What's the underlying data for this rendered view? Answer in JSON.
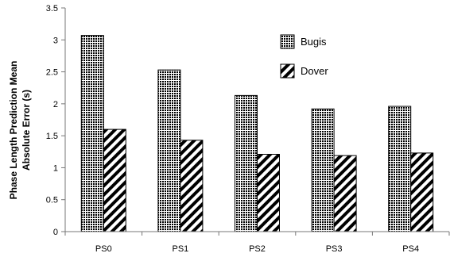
{
  "chart_data": {
    "type": "bar",
    "categories": [
      "PS0",
      "PS1",
      "PS2",
      "PS3",
      "PS4"
    ],
    "series": [
      {
        "name": "Bugis",
        "values": [
          3.07,
          2.53,
          2.13,
          1.92,
          1.96
        ],
        "pattern": "dots"
      },
      {
        "name": "Dover",
        "values": [
          1.6,
          1.43,
          1.21,
          1.19,
          1.23
        ],
        "pattern": "diagonal"
      }
    ],
    "title": "",
    "xlabel": "",
    "ylabel_lines": [
      "Phase Length Prediction Mean",
      "Absolute Error (s)"
    ],
    "ylim": [
      0,
      3.5
    ],
    "yticks": [
      "0",
      "0.5",
      "1",
      "1.5",
      "2",
      "2.5",
      "3",
      "3.5"
    ],
    "grid": false,
    "legend": "upper-right"
  }
}
